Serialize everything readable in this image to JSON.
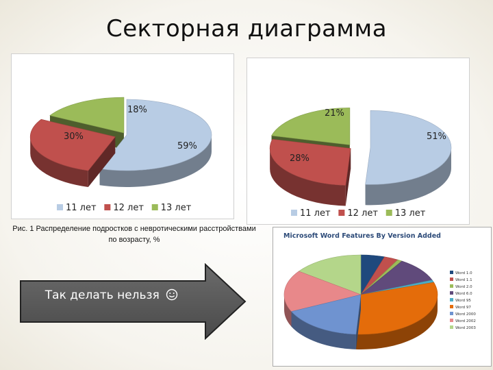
{
  "slide": {
    "title": "Секторная диаграмма",
    "caption": "Рис. 1 Распределение подростков с невротическими расстройствами по возрасту, %",
    "arrow_text": "Так делать нельзя",
    "arrow_icon": "smiley-icon"
  },
  "chart_data": [
    {
      "type": "pie",
      "variant": "3d-exploded",
      "categories": [
        "11 лет",
        "12 лет",
        "13 лет"
      ],
      "values": [
        59,
        30,
        18
      ],
      "labels": [
        "59%",
        "30%",
        "18%"
      ],
      "colors": [
        "#b8cce4",
        "#c0504d",
        "#9bbb59"
      ],
      "legend_position": "bottom"
    },
    {
      "type": "pie",
      "variant": "3d-exploded",
      "categories": [
        "11 лет",
        "12 лет",
        "13 лет"
      ],
      "values": [
        51,
        28,
        21
      ],
      "labels": [
        "51%",
        "28%",
        "21%"
      ],
      "colors": [
        "#b8cce4",
        "#c0504d",
        "#9bbb59"
      ],
      "legend_position": "bottom"
    },
    {
      "type": "pie",
      "variant": "3d",
      "title": "Microsoft Word Features By Version Added",
      "categories": [
        "Word 1.0",
        "Word 1.1",
        "Word 2.0",
        "Word 6.0",
        "Word 95",
        "Word 97",
        "Word 2000",
        "Word 2002",
        "Word 2003"
      ],
      "values": [
        5,
        3,
        1,
        10,
        1,
        31,
        17,
        17,
        15
      ],
      "colors": [
        "#1f497d",
        "#c0504d",
        "#9bbb59",
        "#604a7b",
        "#4bacc6",
        "#e46c0a",
        "#6f93d0",
        "#e8888a",
        "#b4d68a"
      ],
      "legend_position": "right"
    }
  ]
}
